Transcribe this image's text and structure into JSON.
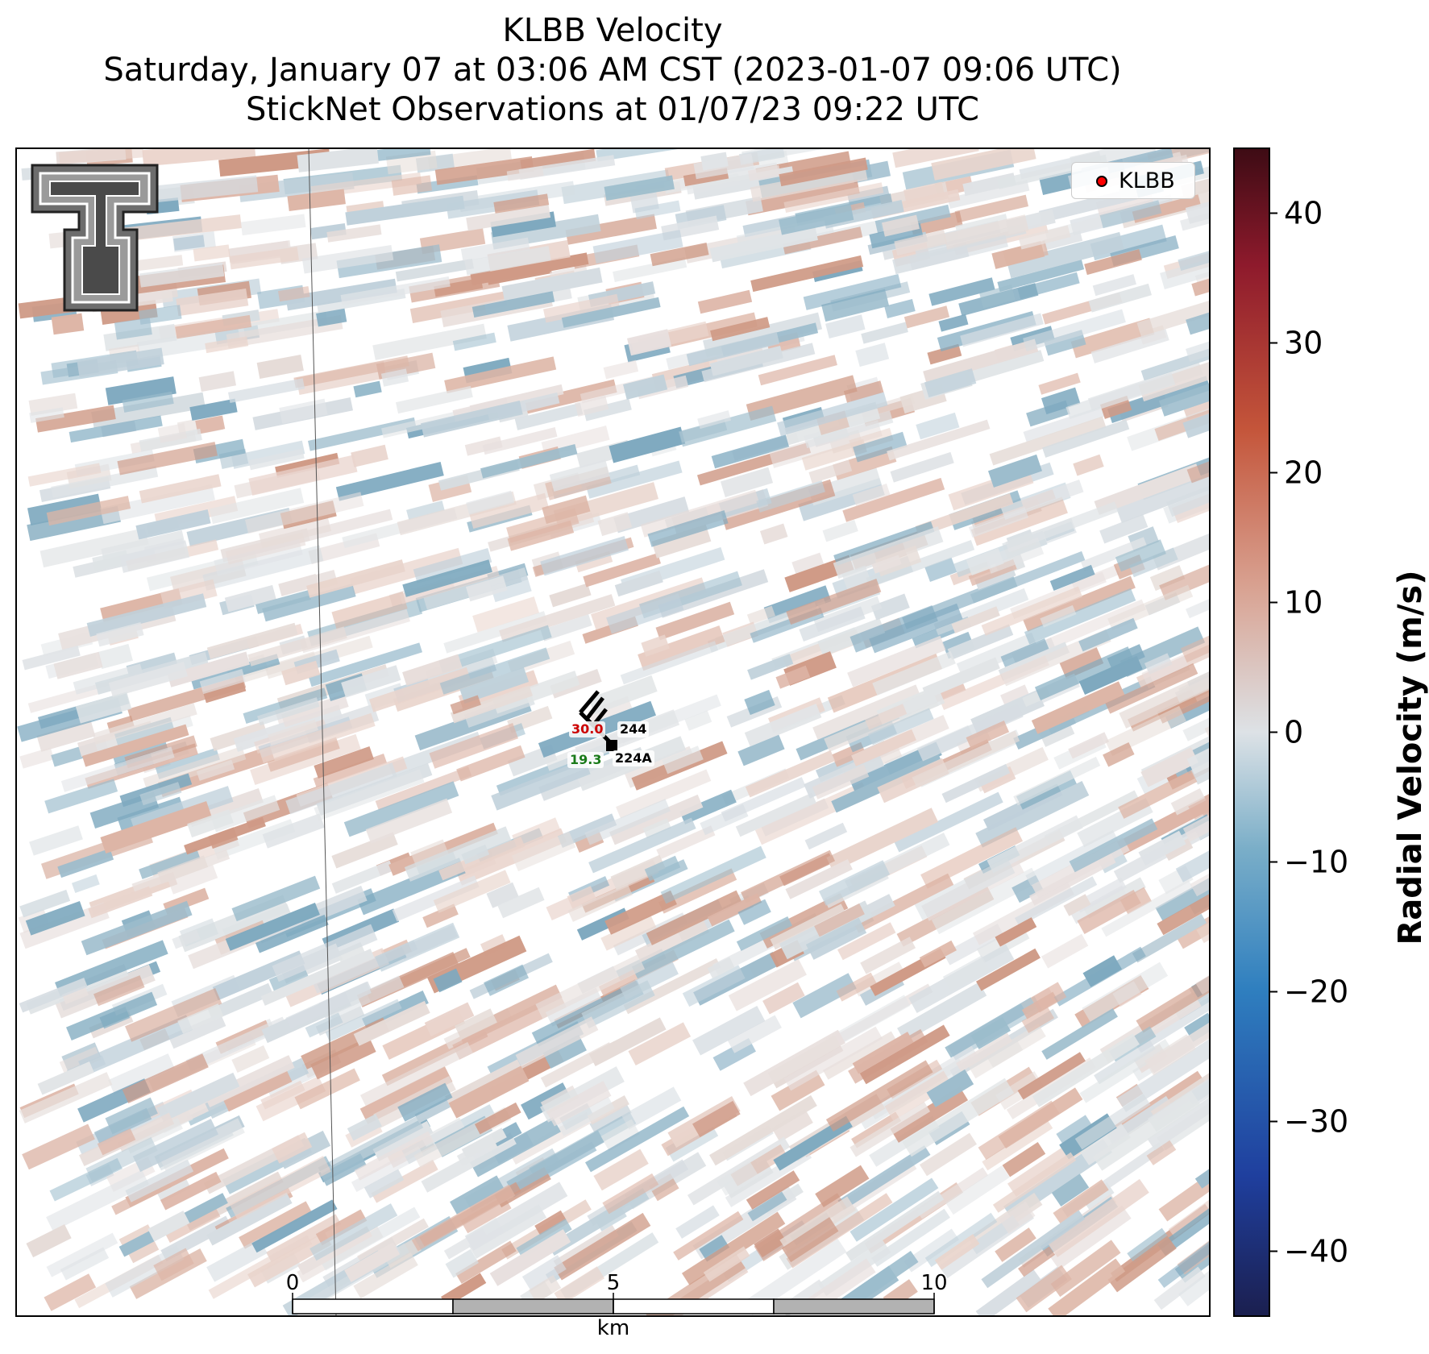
{
  "title": {
    "line1": "KLBB Velocity",
    "line2": "Saturday, January 07 at 03:06 AM CST (2023-01-07 09:06 UTC)",
    "line3": "StickNet Observations at 01/07/23 09:22 UTC"
  },
  "legend": {
    "label": "KLBB",
    "marker_color": "#ff0000"
  },
  "colorbar": {
    "label": "Radial Velocity (m/s)",
    "ticks": [
      "40",
      "30",
      "20",
      "10",
      "0",
      "−10",
      "−20",
      "−30",
      "−40"
    ],
    "range": [
      -45,
      45
    ],
    "colors": [
      "#1b1f4f",
      "#1f3f9e",
      "#2f7fbf",
      "#7aaec8",
      "#dde2e6",
      "#d9a494",
      "#c4553a",
      "#8e1a2c",
      "#3d0b14"
    ]
  },
  "scale_bar": {
    "labels": [
      "0",
      "5",
      "10"
    ],
    "unit": "km"
  },
  "stations": [
    {
      "id": "244",
      "temp": "30.0",
      "temp_color": "#cc0000"
    },
    {
      "id": "224A",
      "dewpoint": "19.3",
      "dew_color": "#1a7a1a"
    }
  ],
  "logo": {
    "name": "Texas Tech University"
  }
}
